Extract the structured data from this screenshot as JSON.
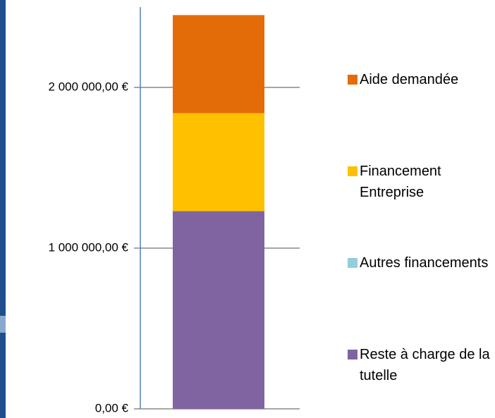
{
  "chart_data": {
    "type": "stacked_bar",
    "categories": [
      null
    ],
    "series": [
      {
        "name": "Reste à charge de la tutelle",
        "color": "#8064a2",
        "values": [
          1230000
        ]
      },
      {
        "name": "Autres financements",
        "color": "#92cddc",
        "values": [
          0
        ]
      },
      {
        "name": "Financement Entreprise",
        "color": "#ffc000",
        "values": [
          610000
        ]
      },
      {
        "name": "Aide demandée",
        "color": "#e36c09",
        "values": [
          610000
        ]
      }
    ],
    "ylim": [
      0,
      2500000
    ],
    "yticks": [
      {
        "value": 0,
        "label": "0,00 €"
      },
      {
        "value": 1000000,
        "label": "1 000 000,00 €"
      },
      {
        "value": 2000000,
        "label": "2 000 000,00 €"
      }
    ],
    "grid": true,
    "legend": "right"
  }
}
